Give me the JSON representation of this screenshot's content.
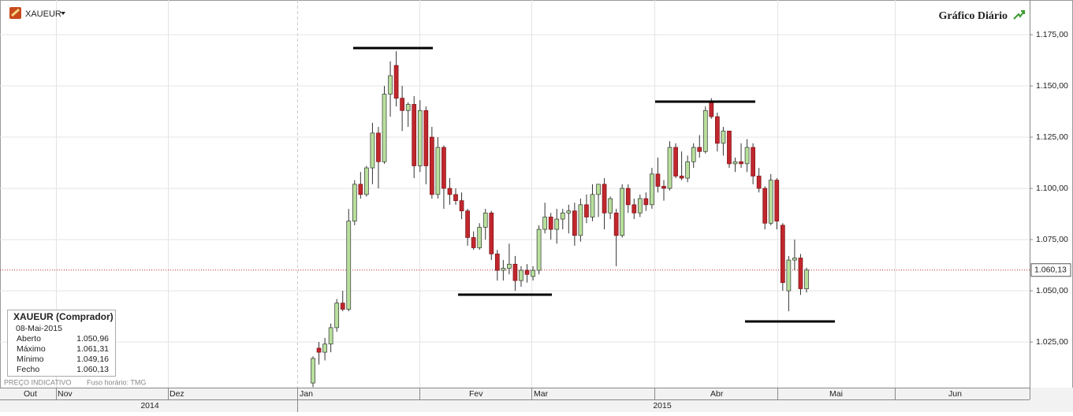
{
  "chart_data": {
    "type": "candlestick",
    "symbol": "XAUEUR",
    "title": "Gráfico Diário",
    "source_note": "PREÇO INDICATIVO",
    "timezone_note": "Fuso horário: TMG",
    "ylim": [
      1003.5,
      1190.4
    ],
    "yticks": [
      {
        "value": 1025,
        "label": "1.025,00"
      },
      {
        "value": 1050,
        "label": "1.050,00"
      },
      {
        "value": 1075,
        "label": "1.075,00"
      },
      {
        "value": 1100,
        "label": "1.100,00"
      },
      {
        "value": 1125,
        "label": "1.125,00"
      },
      {
        "value": 1150,
        "label": "1.150,00"
      },
      {
        "value": 1175,
        "label": "1.175,00"
      }
    ],
    "current_price": {
      "value": 1060.13,
      "label": "1.060,13"
    },
    "up_color": "#b8e09c",
    "down_color": "#c1272d",
    "open": [
      1005,
      1022,
      1020,
      1024,
      1032,
      1044,
      1041,
      1084,
      1102,
      1097,
      1110,
      1127,
      1113,
      1146,
      1160,
      1144,
      1138,
      1141,
      1111,
      1138,
      1125,
      1097,
      1120,
      1100,
      1097,
      1094,
      1089,
      1076,
      1071,
      1081,
      1088,
      1068,
      1060,
      1061,
      1063,
      1055,
      1060,
      1057,
      1060,
      1080,
      1086,
      1080,
      1085,
      1088,
      1089,
      1077,
      1092,
      1086,
      1097,
      1102,
      1088,
      1088,
      1077,
      1100,
      1092,
      1088,
      1095,
      1092,
      1107,
      1101,
      1100,
      1120,
      1106,
      1105,
      1113,
      1120,
      1118,
      1142,
      1135,
      1122,
      1128,
      1112,
      1113,
      1112,
      1120,
      1106,
      1100,
      1083,
      1104,
      1082,
      1050,
      1065,
      1066,
      1050.96
    ],
    "high": [
      1018,
      1025,
      1027,
      1034,
      1046,
      1050,
      1090,
      1104,
      1108,
      1111,
      1132,
      1130,
      1150,
      1162,
      1167,
      1150,
      1142,
      1145,
      1143,
      1140,
      1130,
      1125,
      1121,
      1105,
      1100,
      1098,
      1090,
      1079,
      1083,
      1090,
      1089,
      1070,
      1065,
      1073,
      1067,
      1062,
      1063,
      1062,
      1082,
      1093,
      1088,
      1090,
      1090,
      1092,
      1093,
      1095,
      1097,
      1102,
      1102,
      1105,
      1096,
      1090,
      1102,
      1102,
      1095,
      1097,
      1098,
      1110,
      1115,
      1104,
      1123,
      1122,
      1118,
      1116,
      1122,
      1126,
      1140,
      1144,
      1137,
      1130,
      1128,
      1115,
      1122,
      1124,
      1122,
      1110,
      1101,
      1107,
      1105,
      1083,
      1067,
      1075,
      1068,
      1061.31
    ],
    "low": [
      1003,
      1014,
      1016,
      1020,
      1030,
      1040,
      1040,
      1082,
      1095,
      1096,
      1102,
      1100,
      1112,
      1135,
      1140,
      1128,
      1130,
      1105,
      1108,
      1102,
      1095,
      1095,
      1090,
      1092,
      1092,
      1085,
      1072,
      1070,
      1070,
      1075,
      1065,
      1055,
      1055,
      1058,
      1050,
      1052,
      1054,
      1055,
      1058,
      1078,
      1075,
      1073,
      1080,
      1078,
      1072,
      1074,
      1083,
      1084,
      1086,
      1080,
      1085,
      1062,
      1076,
      1088,
      1085,
      1086,
      1089,
      1090,
      1098,
      1094,
      1099,
      1105,
      1104,
      1103,
      1110,
      1115,
      1117,
      1134,
      1118,
      1116,
      1110,
      1108,
      1110,
      1108,
      1102,
      1098,
      1080,
      1082,
      1080,
      1050,
      1040,
      1060,
      1048,
      1049.16
    ],
    "close": [
      1017,
      1020,
      1024,
      1032,
      1044,
      1041,
      1084,
      1102,
      1097,
      1110,
      1127,
      1113,
      1146,
      1155,
      1144,
      1138,
      1141,
      1111,
      1138,
      1111,
      1097,
      1120,
      1100,
      1097,
      1094,
      1089,
      1076,
      1071,
      1081,
      1088,
      1068,
      1060,
      1061,
      1063,
      1055,
      1060,
      1058,
      1060,
      1080,
      1086,
      1080,
      1085,
      1088,
      1089,
      1077,
      1092,
      1086,
      1097,
      1102,
      1088,
      1095,
      1077,
      1100,
      1092,
      1088,
      1095,
      1092,
      1107,
      1101,
      1100,
      1120,
      1106,
      1105,
      1113,
      1120,
      1118,
      1138,
      1135,
      1122,
      1128,
      1112,
      1113,
      1112,
      1120,
      1106,
      1100,
      1083,
      1104,
      1084,
      1054,
      1065,
      1066,
      1051,
      1060.13
    ],
    "months": [
      "Out",
      "Nov",
      "Dez",
      "Jan",
      "Fev",
      "Mar",
      "Abr",
      "Mai",
      "Jun"
    ],
    "years": [
      "2014",
      "2015"
    ],
    "info_box": {
      "title": "XAUEUR (Comprador)",
      "date": "08-Mai-2015",
      "rows": [
        [
          "Aberto",
          "1.050,96"
        ],
        [
          "Máximo",
          "1.061,31"
        ],
        [
          "Mínimo",
          "1.049,16"
        ],
        [
          "Fecho",
          "1.060,13"
        ]
      ]
    }
  }
}
